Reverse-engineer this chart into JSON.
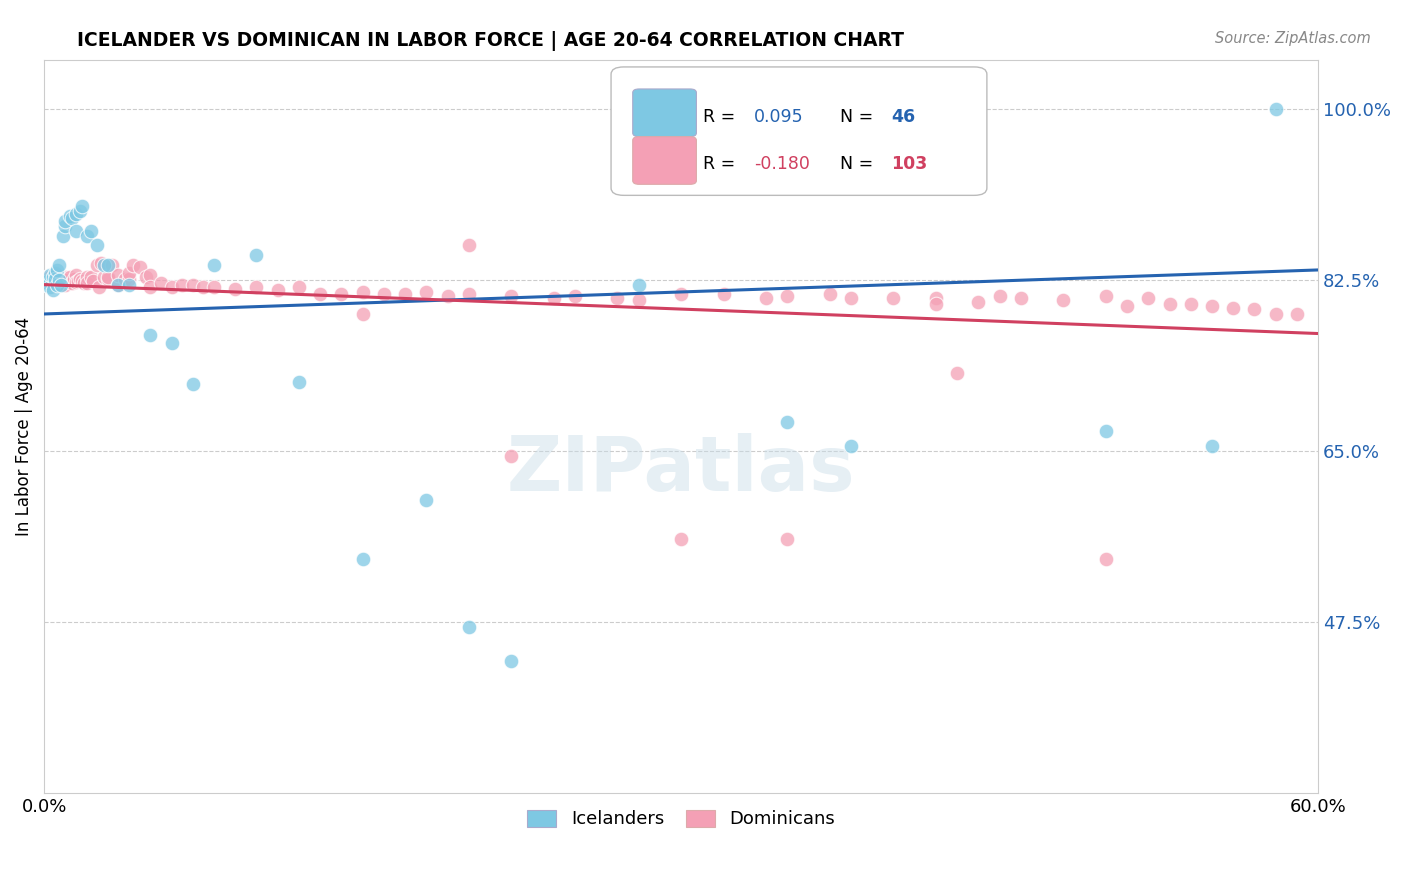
{
  "title": "ICELANDER VS DOMINICAN IN LABOR FORCE | AGE 20-64 CORRELATION CHART",
  "source": "Source: ZipAtlas.com",
  "ylabel": "In Labor Force | Age 20-64",
  "xlim": [
    0.0,
    0.6
  ],
  "ylim": [
    0.3,
    1.05
  ],
  "yticks": [
    0.475,
    0.65,
    0.825,
    1.0
  ],
  "ytick_labels": [
    "47.5%",
    "65.0%",
    "82.5%",
    "100.0%"
  ],
  "xticks": [
    0.0,
    0.1,
    0.2,
    0.3,
    0.4,
    0.5,
    0.6
  ],
  "xtick_labels": [
    "0.0%",
    "",
    "",
    "",
    "",
    "",
    "60.0%"
  ],
  "blue_color": "#7ec8e3",
  "pink_color": "#f4a0b5",
  "line_blue": "#2563b0",
  "line_pink": "#d04060",
  "watermark": "ZIPatlas",
  "blue_line_x0": 0.0,
  "blue_line_y0": 0.79,
  "blue_line_x1": 0.6,
  "blue_line_y1": 0.835,
  "pink_line_x0": 0.0,
  "pink_line_y0": 0.82,
  "pink_line_x1": 0.6,
  "pink_line_y1": 0.77,
  "blue_scatter_x": [
    0.001,
    0.002,
    0.002,
    0.003,
    0.003,
    0.004,
    0.004,
    0.005,
    0.005,
    0.006,
    0.006,
    0.007,
    0.007,
    0.008,
    0.009,
    0.01,
    0.01,
    0.012,
    0.013,
    0.015,
    0.015,
    0.017,
    0.018,
    0.02,
    0.022,
    0.025,
    0.028,
    0.03,
    0.035,
    0.04,
    0.05,
    0.06,
    0.07,
    0.08,
    0.1,
    0.12,
    0.15,
    0.18,
    0.2,
    0.22,
    0.28,
    0.35,
    0.38,
    0.5,
    0.55,
    0.58
  ],
  "blue_scatter_y": [
    0.82,
    0.822,
    0.824,
    0.818,
    0.83,
    0.815,
    0.828,
    0.832,
    0.826,
    0.82,
    0.835,
    0.84,
    0.825,
    0.82,
    0.87,
    0.88,
    0.885,
    0.89,
    0.888,
    0.892,
    0.875,
    0.895,
    0.9,
    0.87,
    0.875,
    0.86,
    0.84,
    0.84,
    0.82,
    0.82,
    0.768,
    0.76,
    0.718,
    0.84,
    0.85,
    0.72,
    0.54,
    0.6,
    0.47,
    0.435,
    0.82,
    0.68,
    0.655,
    0.67,
    0.655,
    1.0
  ],
  "pink_scatter_x": [
    0.001,
    0.002,
    0.002,
    0.003,
    0.003,
    0.004,
    0.005,
    0.005,
    0.006,
    0.006,
    0.007,
    0.007,
    0.008,
    0.008,
    0.009,
    0.009,
    0.01,
    0.01,
    0.01,
    0.011,
    0.012,
    0.013,
    0.014,
    0.015,
    0.015,
    0.016,
    0.017,
    0.018,
    0.019,
    0.02,
    0.02,
    0.022,
    0.023,
    0.025,
    0.026,
    0.027,
    0.028,
    0.03,
    0.03,
    0.032,
    0.035,
    0.035,
    0.038,
    0.04,
    0.04,
    0.042,
    0.045,
    0.048,
    0.05,
    0.05,
    0.055,
    0.06,
    0.065,
    0.07,
    0.075,
    0.08,
    0.09,
    0.1,
    0.11,
    0.12,
    0.13,
    0.14,
    0.15,
    0.16,
    0.17,
    0.18,
    0.19,
    0.2,
    0.22,
    0.24,
    0.25,
    0.27,
    0.28,
    0.3,
    0.32,
    0.34,
    0.35,
    0.37,
    0.38,
    0.4,
    0.42,
    0.44,
    0.45,
    0.46,
    0.48,
    0.5,
    0.51,
    0.52,
    0.53,
    0.54,
    0.55,
    0.56,
    0.57,
    0.58,
    0.59,
    0.15,
    0.3,
    0.35,
    0.42,
    0.5,
    0.2,
    0.22,
    0.43
  ],
  "pink_scatter_y": [
    0.828,
    0.828,
    0.825,
    0.828,
    0.822,
    0.828,
    0.83,
    0.825,
    0.826,
    0.822,
    0.828,
    0.823,
    0.826,
    0.824,
    0.826,
    0.82,
    0.828,
    0.824,
    0.82,
    0.825,
    0.828,
    0.822,
    0.826,
    0.83,
    0.823,
    0.824,
    0.826,
    0.824,
    0.822,
    0.828,
    0.822,
    0.828,
    0.824,
    0.84,
    0.818,
    0.842,
    0.828,
    0.826,
    0.828,
    0.84,
    0.82,
    0.83,
    0.826,
    0.826,
    0.832,
    0.84,
    0.838,
    0.828,
    0.83,
    0.818,
    0.822,
    0.818,
    0.82,
    0.82,
    0.818,
    0.818,
    0.816,
    0.818,
    0.815,
    0.818,
    0.81,
    0.81,
    0.812,
    0.81,
    0.81,
    0.812,
    0.808,
    0.81,
    0.808,
    0.806,
    0.808,
    0.806,
    0.804,
    0.81,
    0.81,
    0.806,
    0.808,
    0.81,
    0.806,
    0.806,
    0.806,
    0.802,
    0.808,
    0.806,
    0.804,
    0.808,
    0.798,
    0.806,
    0.8,
    0.8,
    0.798,
    0.796,
    0.795,
    0.79,
    0.79,
    0.79,
    0.56,
    0.56,
    0.8,
    0.54,
    0.86,
    0.645,
    0.73
  ]
}
